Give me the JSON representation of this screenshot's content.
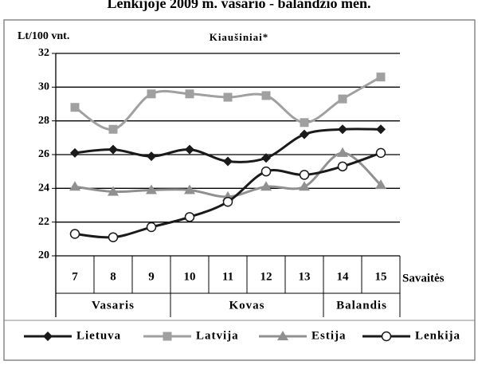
{
  "chart_data": {
    "type": "line",
    "title": "Lenkijoje 2009 m. vasario - balandžio  mėn.",
    "subtitle": "Kiaušiniai*",
    "y_label": "Lt/100 vnt.",
    "x_label": "Savaitės",
    "categories": [
      "7",
      "8",
      "9",
      "10",
      "11",
      "12",
      "13",
      "14",
      "15"
    ],
    "groups": [
      {
        "name": "Vasaris",
        "span": 3
      },
      {
        "name": "Kovas",
        "span": 4
      },
      {
        "name": "Balandis",
        "span": 2
      }
    ],
    "ylim": [
      20,
      32
    ],
    "yticks": [
      20,
      22,
      24,
      26,
      28,
      30,
      32
    ],
    "grid": true,
    "series": [
      {
        "name": "Lietuva",
        "color": "#1a1a1a",
        "marker": "diamond",
        "values": [
          26.1,
          26.3,
          25.9,
          26.3,
          25.6,
          25.8,
          27.2,
          27.5,
          27.5
        ]
      },
      {
        "name": "Latvija",
        "color": "#a0a0a0",
        "marker": "square",
        "values": [
          28.8,
          27.5,
          29.6,
          29.6,
          29.4,
          29.5,
          27.9,
          29.3,
          30.6
        ]
      },
      {
        "name": "Estija",
        "color": "#909090",
        "marker": "triangle",
        "values": [
          24.1,
          23.8,
          23.9,
          23.9,
          23.5,
          24.1,
          24.1,
          26.1,
          24.2
        ]
      },
      {
        "name": "Lenkija",
        "color": "#1a1a1a",
        "marker": "circle",
        "values": [
          21.3,
          21.1,
          21.7,
          22.3,
          23.2,
          25.0,
          24.8,
          25.3,
          26.1
        ]
      }
    ]
  }
}
